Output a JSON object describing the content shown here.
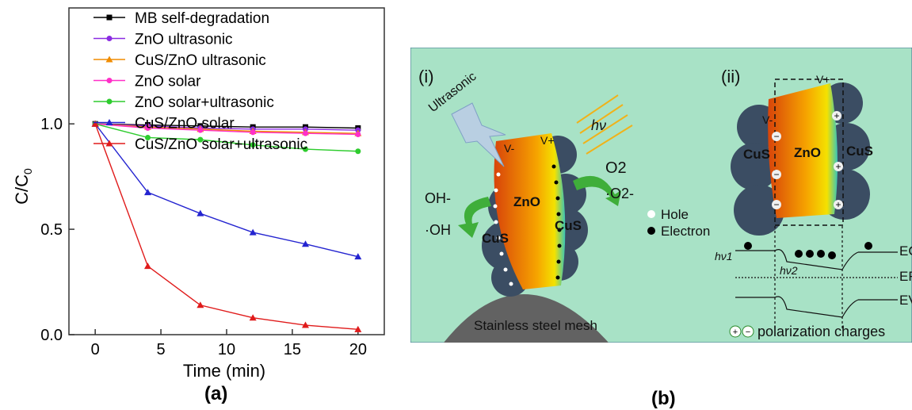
{
  "chart_data": {
    "type": "line",
    "ylabel": "C/C0",
    "ylabel_main": "C/C",
    "ylabel_sub": "0",
    "xlabel": "Time (min)",
    "xlim": [
      -2,
      22
    ],
    "ylim": [
      0,
      1.55
    ],
    "xticks": [
      0,
      5,
      10,
      15,
      20
    ],
    "yticks": [
      0.0,
      0.5,
      1.0
    ],
    "ytick_labels": [
      "0.0",
      "0.5",
      "1.0"
    ],
    "x": [
      0,
      4,
      8,
      12,
      16,
      20
    ],
    "legend_position": "top",
    "series": [
      {
        "name": "MB self-degradation",
        "color": "#000000",
        "marker": "square",
        "values": [
          1.0,
          0.995,
          0.99,
          0.985,
          0.985,
          0.98
        ]
      },
      {
        "name": "ZnO ultrasonic",
        "color": "#8b2be2",
        "marker": "circle",
        "values": [
          1.0,
          0.99,
          0.98,
          0.975,
          0.975,
          0.97
        ]
      },
      {
        "name": "CuS/ZnO ultrasonic",
        "color": "#f08c00",
        "marker": "triangle",
        "values": [
          1.0,
          0.985,
          0.975,
          0.965,
          0.96,
          0.955
        ]
      },
      {
        "name": "ZnO solar",
        "color": "#ff2fc8",
        "marker": "circle",
        "values": [
          1.0,
          0.98,
          0.97,
          0.96,
          0.955,
          0.95
        ]
      },
      {
        "name": "ZnO solar+ultrasonic",
        "color": "#2ecc2e",
        "marker": "circle",
        "values": [
          1.0,
          0.935,
          0.925,
          0.9,
          0.88,
          0.87
        ]
      },
      {
        "name": "CuS/ZnO solar",
        "color": "#2424d0",
        "marker": "triangle",
        "values": [
          1.0,
          0.675,
          0.575,
          0.485,
          0.43,
          0.37
        ]
      },
      {
        "name": "CuS/ZnO solar+ultrasonic",
        "color": "#e01b1b",
        "marker": "triangle",
        "values": [
          1.0,
          0.325,
          0.14,
          0.08,
          0.045,
          0.025
        ]
      }
    ]
  },
  "labels": {
    "a": "(a)",
    "b": "(b)"
  },
  "diagram": {
    "panel_i": "(i)",
    "panel_ii": "(ii)",
    "ultrasonic": "Ultrasonic",
    "hv": "hν",
    "v_minus": "V-",
    "v_plus": "V+",
    "zno": "ZnO",
    "cus": "CuS",
    "o2": "O2",
    "o2_radical": "·O2-",
    "oh_minus": "OH-",
    "oh_radical": "·OH",
    "hole": "Hole",
    "electron": "Electron",
    "mesh": "Stainless steel mesh",
    "ec": "EC",
    "ef": "EF",
    "ev": "EV",
    "hv1": "hν1",
    "hv2": "hν2",
    "polarization": "polarization charges",
    "colors": {
      "background": "#a8e2c6",
      "mesh": "#626262",
      "cus": "#3b4d63"
    }
  }
}
